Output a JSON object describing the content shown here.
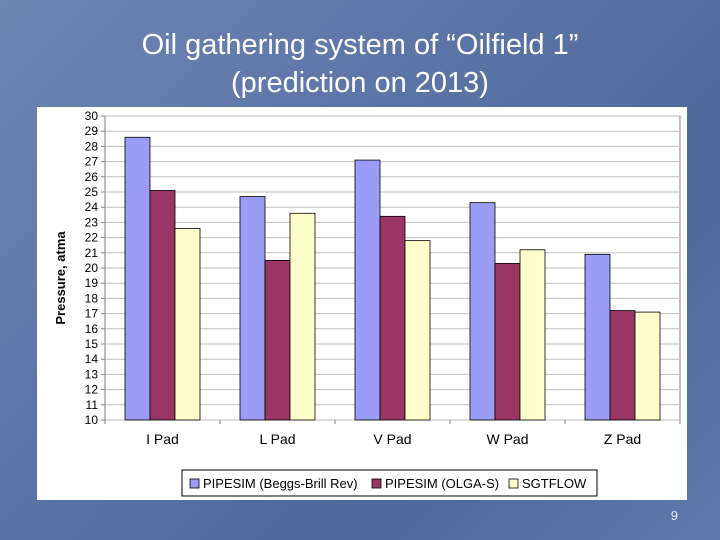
{
  "slide": {
    "title_line1": "Oil gathering system of “Oilfield 1”",
    "title_line2": "(prediction on 2013)",
    "page_number": "9"
  },
  "colors": {
    "background": "#5b74a6",
    "series": [
      "#9a9cf5",
      "#9b3566",
      "#ffffcc"
    ]
  },
  "chart_data": {
    "type": "bar",
    "title": "",
    "xlabel": "",
    "ylabel": "Pressure, atma",
    "ylim": [
      10,
      30
    ],
    "yticks": [
      10,
      11,
      12,
      13,
      14,
      15,
      16,
      17,
      18,
      19,
      20,
      21,
      22,
      23,
      24,
      25,
      26,
      27,
      28,
      29,
      30
    ],
    "grid": true,
    "legend_position": "bottom",
    "categories": [
      "I Pad",
      "L Pad",
      "V Pad",
      "W Pad",
      "Z Pad"
    ],
    "series": [
      {
        "name": "PIPESIM (Beggs-Brill Rev)",
        "values": [
          28.6,
          24.7,
          27.1,
          24.3,
          20.9
        ]
      },
      {
        "name": "PIPESIM (OLGA-S)",
        "values": [
          25.1,
          20.5,
          23.4,
          20.3,
          17.2
        ]
      },
      {
        "name": "SGTFLOW",
        "values": [
          22.6,
          23.6,
          21.8,
          21.2,
          17.1
        ]
      }
    ]
  }
}
